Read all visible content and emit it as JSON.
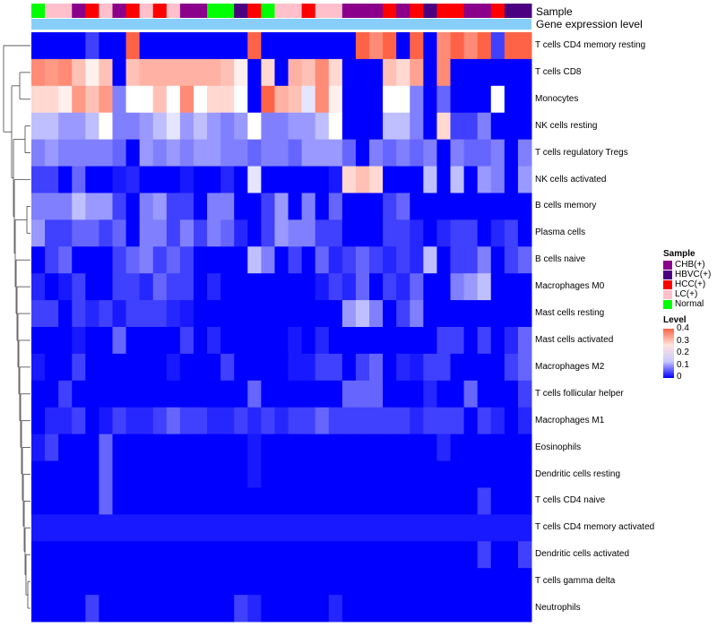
{
  "chart_data": {
    "type": "heatmap",
    "annotation_tracks": {
      "sample_label": "Sample",
      "expression_label": "Gene expression level"
    },
    "samples": [
      "Normal",
      "LC(+)",
      "LC(+)",
      "CHB(+)",
      "HCC(+)",
      "LC(+)",
      "CHB(+)",
      "HCC(+)",
      "LC(+)",
      "HCC(+)",
      "LC(+)",
      "CHB(+)",
      "CHB(+)",
      "Normal",
      "Normal",
      "HBVC(+)",
      "HCC(+)",
      "Normal",
      "LC(+)",
      "LC(+)",
      "HCC(+)",
      "LC(+)",
      "LC(+)",
      "CHB(+)",
      "CHB(+)",
      "CHB(+)",
      "HCC(+)",
      "CHB(+)",
      "HCC(+)",
      "HBVC(+)",
      "HCC(+)",
      "HCC(+)",
      "CHB(+)",
      "CHB(+)",
      "HCC(+)",
      "HBVC(+)",
      "HBVC(+)"
    ],
    "rows": [
      "T cells CD4 memory resting",
      "T cells CD8",
      "Monocytes",
      "NK cells resting",
      "T cells regulatory  Tregs",
      "NK cells activated",
      "B cells memory",
      "Plasma cells",
      "B cells naive",
      "Macrophages M0",
      "Mast cells resting",
      "Mast cells activated",
      "Macrophages M2",
      "T cells follicular helper",
      "Macrophages M1",
      "Eosinophils",
      "Dendritic cells resting",
      "T cells CD4 naive",
      "T cells CD4 memory activated",
      "Dendritic cells activated",
      "T cells gamma delta",
      "Neutrophils"
    ],
    "values": [
      [
        0,
        0,
        0,
        0,
        0.05,
        0,
        0,
        0.4,
        0,
        0,
        0,
        0,
        0,
        0,
        0,
        0,
        0.4,
        0,
        0,
        0,
        0,
        0,
        0,
        0,
        0.4,
        0.35,
        0.4,
        0,
        0.4,
        0,
        0.35,
        0.4,
        0.35,
        0.4,
        0.05,
        0.4,
        0.4
      ],
      [
        0.35,
        0.33,
        0.35,
        0.28,
        0.22,
        0.28,
        0,
        0.28,
        0.3,
        0.3,
        0.3,
        0.3,
        0.3,
        0.3,
        0.28,
        0.22,
        0,
        0.25,
        0,
        0.3,
        0.28,
        0.35,
        0.25,
        0,
        0,
        0,
        0.28,
        0.25,
        0.32,
        0,
        0.35,
        0,
        0,
        0,
        0,
        0,
        0
      ],
      [
        0.25,
        0.25,
        0.22,
        0.33,
        0.28,
        0.33,
        0.1,
        0.2,
        0.2,
        0.28,
        0.2,
        0.35,
        0.2,
        0.25,
        0.25,
        0.2,
        0,
        0.4,
        0.3,
        0.28,
        0.18,
        0.35,
        0.22,
        0,
        0,
        0,
        0.2,
        0.2,
        0.1,
        0,
        0.08,
        0,
        0,
        0,
        0.2,
        0,
        0
      ],
      [
        0.15,
        0.15,
        0.12,
        0.12,
        0.15,
        0.2,
        0.1,
        0.1,
        0.12,
        0.15,
        0.18,
        0.12,
        0.15,
        0.12,
        0.1,
        0.12,
        0.2,
        0.1,
        0.1,
        0.12,
        0.12,
        0.15,
        0.2,
        0,
        0,
        0,
        0.15,
        0.15,
        0.1,
        0,
        0.25,
        0.05,
        0.05,
        0.1,
        0,
        0,
        0
      ],
      [
        0.1,
        0.12,
        0.1,
        0.1,
        0.1,
        0.1,
        0.08,
        0,
        0.12,
        0.1,
        0.12,
        0.1,
        0.12,
        0.12,
        0.1,
        0.1,
        0.08,
        0.1,
        0.1,
        0.08,
        0.12,
        0.12,
        0.12,
        0.08,
        0,
        0.1,
        0.08,
        0.1,
        0.08,
        0.1,
        0,
        0.1,
        0.08,
        0.08,
        0.1,
        0,
        0.1
      ],
      [
        0.05,
        0.05,
        0,
        0.08,
        0,
        0,
        0.02,
        0.03,
        0,
        0,
        0,
        0.02,
        0,
        0,
        0.03,
        0,
        0.18,
        0,
        0,
        0,
        0,
        0,
        0.02,
        0.25,
        0.28,
        0.25,
        0,
        0,
        0,
        0.15,
        0,
        0.15,
        0,
        0.12,
        0.1,
        0,
        0.12
      ],
      [
        0.1,
        0.1,
        0.1,
        0.15,
        0.12,
        0.12,
        0.05,
        0,
        0.1,
        0.12,
        0.05,
        0.05,
        0,
        0.1,
        0.1,
        0,
        0,
        0.05,
        0.12,
        0,
        0.1,
        0,
        0.08,
        0,
        0,
        0,
        0.05,
        0.08,
        0,
        0,
        0,
        0,
        0,
        0,
        0,
        0,
        0
      ],
      [
        0.12,
        0.05,
        0.05,
        0.08,
        0.08,
        0.05,
        0.08,
        0,
        0.1,
        0.1,
        0.05,
        0.1,
        0.05,
        0.1,
        0.08,
        0.03,
        0,
        0.05,
        0.12,
        0.1,
        0.1,
        0.05,
        0.05,
        0,
        0,
        0,
        0.05,
        0.05,
        0.03,
        0,
        0.03,
        0.05,
        0.05,
        0,
        0.03,
        0.05,
        0
      ],
      [
        0,
        0.05,
        0.08,
        0,
        0,
        0,
        0.05,
        0.08,
        0.1,
        0.05,
        0.08,
        0.05,
        0,
        0,
        0,
        0,
        0.15,
        0.1,
        0,
        0.05,
        0,
        0.08,
        0.03,
        0.05,
        0.08,
        0.05,
        0.03,
        0.05,
        0.03,
        0.15,
        0,
        0.05,
        0.05,
        0.1,
        0,
        0.05,
        0.08
      ],
      [
        0.03,
        0,
        0.02,
        0.05,
        0,
        0,
        0.05,
        0.05,
        0.03,
        0.08,
        0.05,
        0.05,
        0,
        0.03,
        0,
        0,
        0,
        0,
        0,
        0,
        0,
        0.02,
        0.05,
        0.03,
        0.08,
        0,
        0.05,
        0.03,
        0.08,
        0,
        0,
        0.1,
        0.12,
        0.15,
        0,
        0,
        0
      ],
      [
        0.05,
        0.05,
        0,
        0.05,
        0.03,
        0.05,
        0.02,
        0.05,
        0.05,
        0.05,
        0.03,
        0.02,
        0,
        0,
        0,
        0,
        0,
        0,
        0,
        0,
        0,
        0,
        0,
        0.12,
        0.15,
        0.1,
        0,
        0.05,
        0.1,
        0,
        0,
        0,
        0,
        0,
        0,
        0,
        0
      ],
      [
        0,
        0,
        0,
        0.02,
        0,
        0,
        0.08,
        0,
        0,
        0,
        0,
        0.05,
        0,
        0.03,
        0,
        0,
        0,
        0,
        0,
        0.02,
        0,
        0.03,
        0,
        0,
        0,
        0,
        0,
        0,
        0,
        0,
        0.05,
        0.05,
        0,
        0.05,
        0,
        0.03,
        0.08
      ],
      [
        0.02,
        0,
        0,
        0.05,
        0,
        0,
        0,
        0,
        0,
        0,
        0.02,
        0,
        0,
        0,
        0.05,
        0,
        0,
        0,
        0,
        0.02,
        0.02,
        0.05,
        0.05,
        0,
        0.05,
        0.08,
        0,
        0.03,
        0.02,
        0.05,
        0.05,
        0,
        0,
        0,
        0,
        0.05,
        0.08
      ],
      [
        0,
        0,
        0.05,
        0,
        0,
        0,
        0,
        0,
        0,
        0,
        0,
        0,
        0,
        0,
        0,
        0,
        0.08,
        0,
        0,
        0,
        0,
        0,
        0,
        0.08,
        0.08,
        0.08,
        0,
        0,
        0,
        0.03,
        0,
        0,
        0.08,
        0,
        0,
        0,
        0.05
      ],
      [
        0,
        0.03,
        0.03,
        0.05,
        0,
        0.02,
        0.05,
        0.03,
        0.03,
        0.05,
        0.08,
        0.05,
        0.05,
        0.03,
        0.03,
        0.05,
        0.03,
        0.05,
        0.03,
        0.05,
        0.05,
        0.08,
        0.05,
        0.05,
        0.05,
        0.05,
        0.05,
        0.05,
        0.03,
        0.05,
        0.05,
        0.05,
        0,
        0.05,
        0.03,
        0,
        0.03
      ],
      [
        0.02,
        0.05,
        0,
        0,
        0,
        0.08,
        0,
        0,
        0,
        0,
        0,
        0,
        0,
        0,
        0,
        0,
        0.02,
        0,
        0,
        0,
        0,
        0,
        0,
        0,
        0,
        0,
        0,
        0,
        0,
        0,
        0.03,
        0,
        0,
        0,
        0,
        0,
        0
      ],
      [
        0,
        0,
        0,
        0,
        0,
        0.08,
        0,
        0,
        0,
        0,
        0,
        0,
        0,
        0,
        0,
        0,
        0.02,
        0,
        0,
        0,
        0,
        0,
        0,
        0,
        0,
        0,
        0,
        0,
        0,
        0,
        0,
        0,
        0,
        0,
        0,
        0,
        0
      ],
      [
        0,
        0,
        0,
        0,
        0,
        0.08,
        0,
        0,
        0,
        0,
        0,
        0,
        0,
        0,
        0,
        0,
        0,
        0,
        0,
        0,
        0,
        0,
        0,
        0,
        0,
        0,
        0,
        0,
        0,
        0,
        0,
        0,
        0,
        0.05,
        0,
        0,
        0
      ],
      [
        0.02,
        0.02,
        0.02,
        0.02,
        0.02,
        0.02,
        0.02,
        0.02,
        0.02,
        0.02,
        0.02,
        0.02,
        0.02,
        0.02,
        0.02,
        0.02,
        0.02,
        0.02,
        0.02,
        0.02,
        0.02,
        0.02,
        0.02,
        0.02,
        0.02,
        0.02,
        0.02,
        0.02,
        0.02,
        0.02,
        0.02,
        0.02,
        0.02,
        0.02,
        0.02,
        0.02,
        0.02
      ],
      [
        0,
        0,
        0,
        0,
        0,
        0,
        0,
        0,
        0,
        0,
        0,
        0,
        0,
        0,
        0,
        0,
        0,
        0,
        0,
        0,
        0,
        0,
        0,
        0,
        0,
        0,
        0,
        0,
        0,
        0,
        0,
        0,
        0,
        0.05,
        0,
        0,
        0.05
      ],
      [
        0,
        0,
        0,
        0,
        0,
        0,
        0,
        0,
        0,
        0,
        0,
        0,
        0,
        0,
        0,
        0,
        0,
        0,
        0,
        0,
        0,
        0,
        0,
        0,
        0,
        0,
        0,
        0,
        0,
        0,
        0,
        0,
        0,
        0,
        0,
        0,
        0
      ],
      [
        0,
        0,
        0,
        0,
        0.05,
        0,
        0,
        0,
        0,
        0,
        0,
        0,
        0,
        0,
        0,
        0.05,
        0.03,
        0,
        0,
        0,
        0,
        0,
        0.03,
        0,
        0,
        0,
        0,
        0,
        0,
        0,
        0,
        0,
        0,
        0,
        0,
        0,
        0
      ]
    ],
    "sample_legend": {
      "title": "Sample",
      "items": [
        {
          "label": "CHB(+)",
          "color": "#8b008b"
        },
        {
          "label": "HBVC(+)",
          "color": "#4b0082"
        },
        {
          "label": "HCC(+)",
          "color": "#ff0000"
        },
        {
          "label": "LC(+)",
          "color": "#ffc0cb"
        },
        {
          "label": "Normal",
          "color": "#00ff00"
        }
      ]
    },
    "level_legend": {
      "title": "Level",
      "ticks": [
        "0.4",
        "0.3",
        "0.2",
        "0.1",
        "0"
      ],
      "range": [
        0,
        0.4
      ],
      "colors": {
        "low": "#0000ff",
        "mid": "#ffffff",
        "high": "#ff6347"
      }
    },
    "expression_track_color": "#87cefa"
  }
}
